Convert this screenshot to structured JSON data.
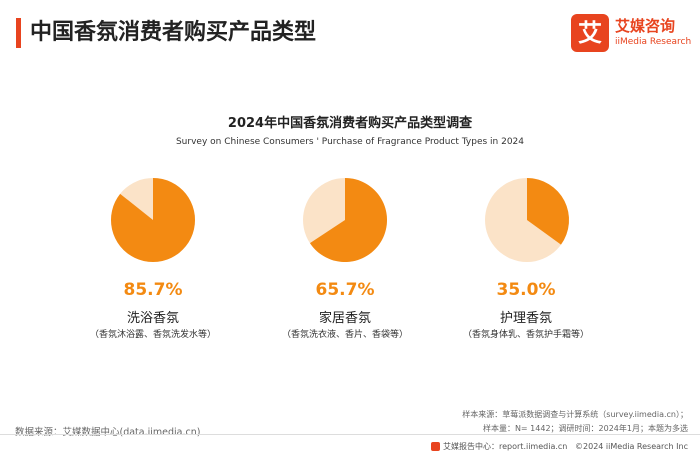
{
  "header": {
    "title": "中国香氛消费者购买产品类型",
    "logo": {
      "mark": "艾",
      "name_cn": "艾媒咨询",
      "name_en": "iiMedia Research"
    }
  },
  "chart_data": {
    "type": "pie",
    "title": "2024年中国香氛消费者购买产品类型调查",
    "subtitle": "Survey on Chinese Consumers ' Purchase of Fragrance Product Types in 2024",
    "categories": [
      {
        "name": "洗浴香氛",
        "description": "（香氛沐浴露、香氛洗发水等）",
        "value": 85.7,
        "label": "85.7%"
      },
      {
        "name": "家居香氛",
        "description": "（香氛洗衣液、香片、香袋等）",
        "value": 65.7,
        "label": "65.7%"
      },
      {
        "name": "护理香氛",
        "description": "（香氛身体乳、香氛护手霜等）",
        "value": 35.0,
        "label": "35.0%"
      }
    ],
    "colors": {
      "filled": "#f38a12",
      "remainder": "#fbe3c8"
    }
  },
  "footer": {
    "data_source": "数据来源：艾媒数据中心(data.iimedia.cn)",
    "sample_source": "样本来源：草莓派数据调查与计算系统（survey.iimedia.cn）；",
    "sample_info": "样本量：N= 1442；调研时间：2024年1月；本题为多选",
    "report_center": "艾媒报告中心：report.iimedia.cn",
    "copyright": "©2024  iiMedia Research  Inc"
  }
}
